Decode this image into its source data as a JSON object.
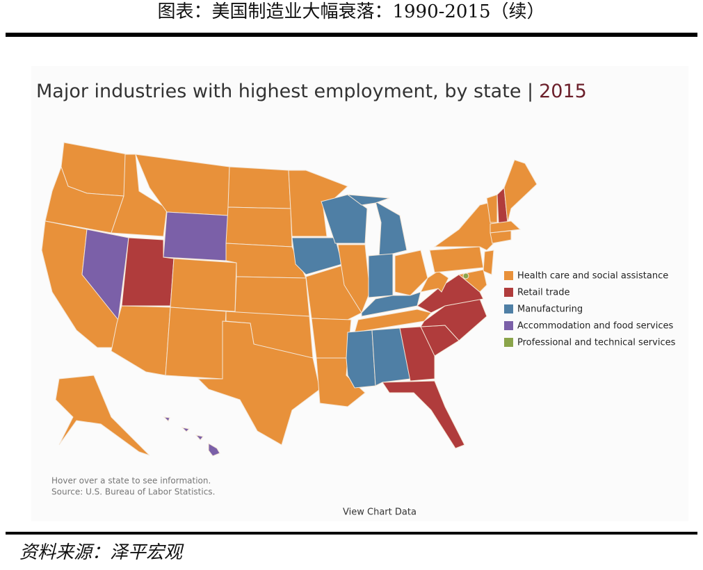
{
  "header": {
    "title": "图表：美国制造业大幅衰落：1990-2015（续）"
  },
  "map": {
    "title": "Major industries with highest employment, by state |",
    "year": "2015",
    "legend": [
      {
        "label": "Health care and social assistance",
        "color": "#e8913a"
      },
      {
        "label": "Retail trade",
        "color": "#b03c3c"
      },
      {
        "label": "Manufacturing",
        "color": "#4f7fa5"
      },
      {
        "label": "Accommodation and food services",
        "color": "#7b60a8"
      },
      {
        "label": "Professional and technical services",
        "color": "#8aa44a"
      }
    ],
    "notes": [
      "Hover over a state to see information.",
      "Source: U.S. Bureau of Labor Statistics."
    ],
    "link": "View Chart Data"
  },
  "footer": {
    "source": "资料来源：泽平宏观"
  }
}
